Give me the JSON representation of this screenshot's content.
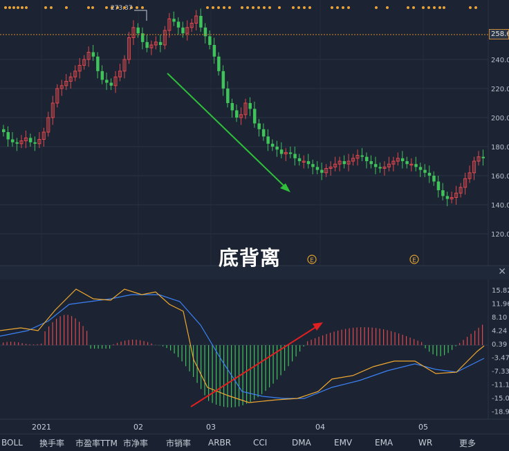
{
  "headline": "底背离",
  "high_label": "273.37",
  "current_price_tag": "258.6",
  "event_markers": [
    "E",
    "E"
  ],
  "close_label": "✕",
  "price_axis_labels": [
    "240.0",
    "220.0",
    "200.0",
    "180.0",
    "160.0",
    "140.0",
    "120.0"
  ],
  "macd_axis_labels": [
    "15.82",
    "11.96",
    "8.10",
    "4.24",
    "0.39",
    "-3.47",
    "-7.33",
    "-11.1",
    "-15.0",
    "-18.9"
  ],
  "time_axis_labels": [
    "2021",
    "02",
    "03",
    "04",
    "05"
  ],
  "indicator_tabs": [
    "BOLL",
    "换手率",
    "市盈率TTM",
    "市净率",
    "市销率",
    "ARBR",
    "CCI",
    "DMA",
    "EMV",
    "EMA",
    "WR",
    "更多"
  ],
  "colors": {
    "background": "#1c2433",
    "up": "#e0484d",
    "down": "#3fc35a",
    "dif": "#f0a830",
    "dea": "#3b82f6",
    "arrow_down": "#2fbf3a",
    "arrow_up": "#e02020",
    "dashed_line": "#d98a2a"
  },
  "chart_data": {
    "type": "candlestick",
    "price_range": [
      110,
      280
    ],
    "price_ticks": [
      240,
      220,
      200,
      180,
      160,
      140,
      120
    ],
    "current_price": 258.6,
    "high": 273.37,
    "annotation": "底背离",
    "trend_arrows": [
      "down",
      "up"
    ],
    "closes": [
      190,
      185,
      183,
      182,
      184,
      186,
      183,
      182,
      185,
      190,
      200,
      210,
      220,
      222,
      225,
      228,
      232,
      236,
      240,
      245,
      242,
      232,
      226,
      224,
      222,
      228,
      232,
      240,
      255,
      262,
      258,
      252,
      248,
      250,
      252,
      250,
      260,
      268,
      266,
      262,
      258,
      262,
      265,
      270,
      262,
      256,
      250,
      242,
      232,
      220,
      210,
      205,
      200,
      202,
      210,
      206,
      196,
      192,
      187,
      182,
      180,
      178,
      175,
      176,
      175,
      172,
      170,
      170,
      168,
      166,
      164,
      162,
      165,
      166,
      168,
      170,
      168,
      170,
      172,
      174,
      173,
      170,
      168,
      166,
      165,
      166,
      168,
      170,
      172,
      170,
      168,
      168,
      166,
      164,
      162,
      160,
      156,
      150,
      146,
      144,
      145,
      148,
      152,
      158,
      162,
      170,
      173,
      172
    ]
  }
}
